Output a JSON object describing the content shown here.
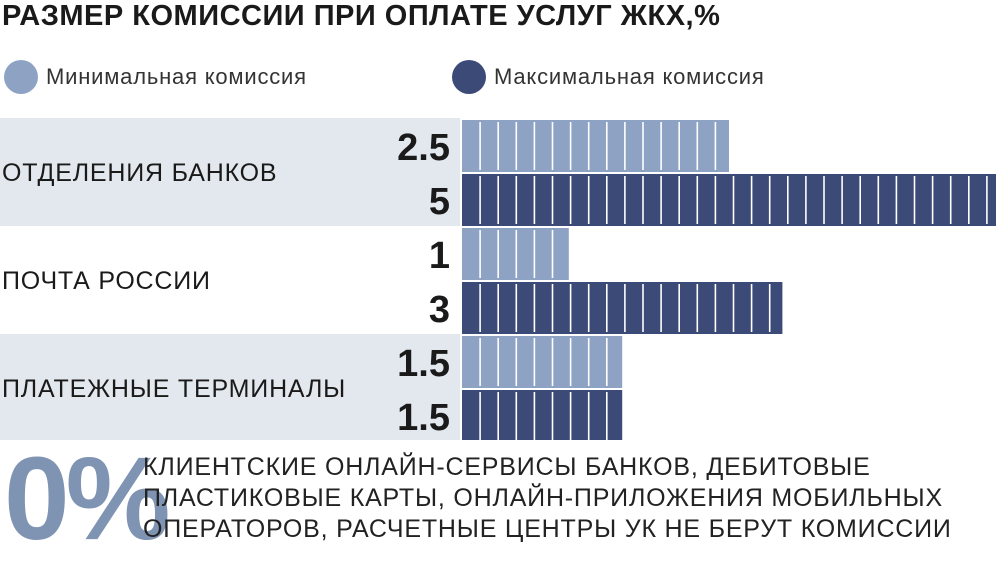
{
  "title": "РАЗМЕР КОМИССИИ ПРИ ОПЛАТЕ УСЛУГ ЖКХ,%",
  "colors": {
    "min": "#8ea2c4",
    "max": "#3b4a77",
    "band": "#e3e8ee",
    "zero": "#7f93b3"
  },
  "chart_data": {
    "type": "bar",
    "title": "РАЗМЕР КОМИССИИ ПРИ ОПЛАТЕ УСЛУГ ЖКХ,%",
    "orientation": "horizontal",
    "categories": [
      "ОТДЕЛЕНИЯ БАНКОВ",
      "ПОЧТА РОССИИ",
      "ПЛАТЕЖНЫЕ ТЕРМИНАЛЫ"
    ],
    "series": [
      {
        "name": "Минимальная комиссия",
        "values": [
          2.5,
          1,
          1.5
        ],
        "labels": [
          "2.5",
          "1",
          "1.5"
        ]
      },
      {
        "name": "Максимальная комиссия",
        "values": [
          5,
          3,
          1.5
        ],
        "labels": [
          "5",
          "3",
          "1.5"
        ]
      }
    ],
    "xlim": [
      0,
      5
    ],
    "legend": "top",
    "grid": false
  },
  "footer": {
    "zero": "0%",
    "lines": [
      "КЛИЕНТСКИЕ ОНЛАЙН-СЕРВИСЫ БАНКОВ, ДЕБИТОВЫЕ",
      "ПЛАСТИКОВЫЕ КАРТЫ, ОНЛАЙН-ПРИЛОЖЕНИЯ МОБИЛЬНЫХ",
      "ОПЕРАТОРОВ, РАСЧЕТНЫЕ ЦЕНТРЫ УК НЕ БЕРУТ КОМИССИИ"
    ]
  }
}
